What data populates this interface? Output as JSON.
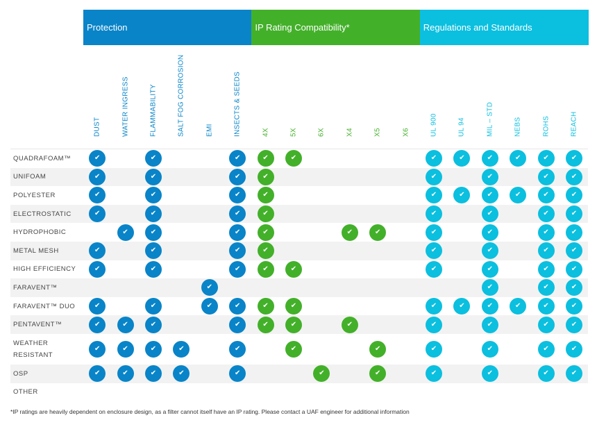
{
  "groups": [
    {
      "label": "Protection",
      "color": "#0984c8"
    },
    {
      "label": "IP Rating Compatibility*",
      "color": "#43b02a"
    },
    {
      "label": "Regulations and Standards",
      "color": "#0bbfdf"
    }
  ],
  "columns": [
    {
      "label": "DUST",
      "group": 0
    },
    {
      "label": "WATER INGRESS",
      "group": 0
    },
    {
      "label": "FLAMMABILITY",
      "group": 0
    },
    {
      "label": "SALT FOG CORROSION",
      "group": 0
    },
    {
      "label": "EMI",
      "group": 0
    },
    {
      "label": "INSECTS & SEEDS",
      "group": 0
    },
    {
      "label": "4X",
      "group": 1
    },
    {
      "label": "5X",
      "group": 1
    },
    {
      "label": "6X",
      "group": 1
    },
    {
      "label": "X4",
      "group": 1
    },
    {
      "label": "X5",
      "group": 1
    },
    {
      "label": "X6",
      "group": 1
    },
    {
      "label": "UL 900",
      "group": 2
    },
    {
      "label": "UL 94",
      "group": 2
    },
    {
      "label": "MIL – STD",
      "group": 2
    },
    {
      "label": "NEBS",
      "group": 2
    },
    {
      "label": "ROHS",
      "group": 2
    },
    {
      "label": "REACH",
      "group": 2
    }
  ],
  "check_icon": "check-circle-icon",
  "rows": [
    {
      "label": "QUADRAFOAM™",
      "checks": [
        "DUST",
        "FLAMMABILITY",
        "INSECTS & SEEDS",
        "4X",
        "5X",
        "UL 900",
        "UL 94",
        "MIL – STD",
        "NEBS",
        "ROHS",
        "REACH"
      ]
    },
    {
      "label": "UNIFOAM",
      "checks": [
        "DUST",
        "FLAMMABILITY",
        "INSECTS & SEEDS",
        "4X",
        "UL 900",
        "MIL – STD",
        "ROHS",
        "REACH"
      ]
    },
    {
      "label": "POLYESTER",
      "checks": [
        "DUST",
        "FLAMMABILITY",
        "INSECTS & SEEDS",
        "4X",
        "UL 900",
        "UL 94",
        "MIL – STD",
        "NEBS",
        "ROHS",
        "REACH"
      ]
    },
    {
      "label": "ELECTROSTATIC",
      "checks": [
        "DUST",
        "FLAMMABILITY",
        "INSECTS & SEEDS",
        "4X",
        "UL 900",
        "MIL – STD",
        "ROHS",
        "REACH"
      ]
    },
    {
      "label": "HYDROPHOBIC",
      "checks": [
        "WATER INGRESS",
        "FLAMMABILITY",
        "INSECTS & SEEDS",
        "4X",
        "X4",
        "X5",
        "UL 900",
        "MIL – STD",
        "ROHS",
        "REACH"
      ]
    },
    {
      "label": "METAL MESH",
      "checks": [
        "DUST",
        "FLAMMABILITY",
        "INSECTS & SEEDS",
        "4X",
        "UL 900",
        "MIL – STD",
        "ROHS",
        "REACH"
      ]
    },
    {
      "label": "HIGH EFFICIENCY",
      "checks": [
        "DUST",
        "FLAMMABILITY",
        "INSECTS & SEEDS",
        "4X",
        "5X",
        "UL 900",
        "MIL – STD",
        "ROHS",
        "REACH"
      ]
    },
    {
      "label": "FARAVENT™",
      "checks": [
        "EMI",
        "MIL – STD",
        "ROHS",
        "REACH"
      ]
    },
    {
      "label": "FARAVENT™  DUO",
      "checks": [
        "DUST",
        "FLAMMABILITY",
        "EMI",
        "INSECTS & SEEDS",
        "4X",
        "5X",
        "UL 900",
        "UL 94",
        "MIL – STD",
        "NEBS",
        "ROHS",
        "REACH"
      ]
    },
    {
      "label": "PENTAVENT™",
      "checks": [
        "DUST",
        "WATER INGRESS",
        "FLAMMABILITY",
        "INSECTS & SEEDS",
        "4X",
        "5X",
        "X4",
        "UL 900",
        "MIL – STD",
        "ROHS",
        "REACH"
      ]
    },
    {
      "label": "WEATHER RESISTANT",
      "checks": [
        "DUST",
        "WATER INGRESS",
        "FLAMMABILITY",
        "SALT FOG CORROSION",
        "INSECTS & SEEDS",
        "5X",
        "X5",
        "UL 900",
        "MIL – STD",
        "ROHS",
        "REACH"
      ]
    },
    {
      "label": "OSP",
      "checks": [
        "DUST",
        "WATER INGRESS",
        "FLAMMABILITY",
        "SALT FOG CORROSION",
        "INSECTS & SEEDS",
        "6X",
        "X5",
        "UL 900",
        "MIL – STD",
        "ROHS",
        "REACH"
      ]
    },
    {
      "label": "OTHER",
      "checks": []
    }
  ],
  "footnote": "*IP ratings are heavily dependent on enclosure design, as a filter cannot itself have an IP rating. Please contact a UAF engineer for additional information"
}
